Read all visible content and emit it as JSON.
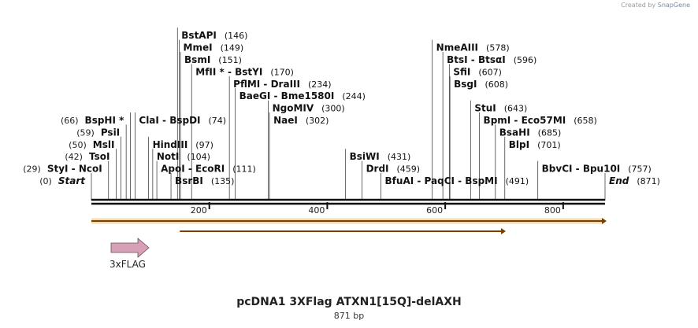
{
  "watermark": {
    "prefix": "Created by",
    "brand": "SnapGene"
  },
  "plasmid": {
    "name": "pcDNA1 3XFlag ATXN1[15Q]-delAXH",
    "length_label": "871 bp"
  },
  "sequence": {
    "length": 871
  },
  "ticks": [
    {
      "pos": 200,
      "label": "200"
    },
    {
      "pos": 400,
      "label": "400"
    },
    {
      "pos": 600,
      "label": "600"
    },
    {
      "pos": 800,
      "label": "800"
    }
  ],
  "features": [
    {
      "name": "3xFLAG",
      "type": "cds",
      "start": 33,
      "end": 98,
      "color": "#d7a0b6"
    }
  ],
  "orfs": [
    {
      "start": 0,
      "end": 871,
      "color": "#d89a20"
    },
    {
      "start": 150,
      "end": 700,
      "color": "#d89a20"
    }
  ],
  "sites": [
    {
      "name": "Start",
      "num": "(0)",
      "pos": 0,
      "italic": true,
      "side": "left",
      "row": 0
    },
    {
      "name": "StyI - NcoI",
      "num": "(29)",
      "pos": 29,
      "side": "left",
      "row": 1
    },
    {
      "name": "TsoI",
      "num": "(42)",
      "pos": 42,
      "side": "left",
      "row": 2
    },
    {
      "name": "MslI",
      "num": "(50)",
      "pos": 50,
      "side": "left",
      "row": 3
    },
    {
      "name": "PsiI",
      "num": "(59)",
      "pos": 59,
      "side": "left",
      "row": 4
    },
    {
      "name": "BspHI *",
      "num": "(66)",
      "pos": 66,
      "side": "left",
      "row": 5
    },
    {
      "name": "BsrBI",
      "num": "(135)",
      "pos": 135,
      "side": "right",
      "row": 0
    },
    {
      "name": "ApoI - EcoRI",
      "num": "(111)",
      "pos": 111,
      "side": "right",
      "row": 1
    },
    {
      "name": "NotI",
      "num": "(104)",
      "pos": 104,
      "side": "right",
      "row": 2
    },
    {
      "name": "HindIII",
      "num": "(97)",
      "pos": 97,
      "side": "right",
      "row": 3
    },
    {
      "name": "ClaI - BspDI",
      "num": "(74)",
      "pos": 74,
      "side": "right",
      "row": 5
    },
    {
      "name": "MfII * - BstYI",
      "num": "(170)",
      "pos": 170,
      "side": "right",
      "row": 9
    },
    {
      "name": "BsmI",
      "num": "(151)",
      "pos": 151,
      "side": "right",
      "row": 10
    },
    {
      "name": "MmeI",
      "num": "(149)",
      "pos": 149,
      "side": "right",
      "row": 11
    },
    {
      "name": "BstAPI",
      "num": "(146)",
      "pos": 146,
      "side": "right",
      "row": 12
    },
    {
      "name": "BaeGI - Bme1580I",
      "num": "(244)",
      "pos": 244,
      "side": "right",
      "row": 7
    },
    {
      "name": "PflMI - DraIII",
      "num": "(234)",
      "pos": 234,
      "side": "right",
      "row": 8
    },
    {
      "name": "NaeI",
      "num": "(302)",
      "pos": 302,
      "side": "right",
      "row": 5
    },
    {
      "name": "NgoMIV",
      "num": "(300)",
      "pos": 300,
      "side": "right",
      "row": 6
    },
    {
      "name": "BsiWI",
      "num": "(431)",
      "pos": 431,
      "side": "right",
      "row": 2
    },
    {
      "name": "DrdI",
      "num": "(459)",
      "pos": 459,
      "side": "right",
      "row": 1
    },
    {
      "name": "BfuAI - PaqCI - BspMI",
      "num": "(491)",
      "pos": 491,
      "side": "right",
      "row": 0
    },
    {
      "name": "BsgI",
      "num": "(608)",
      "pos": 608,
      "side": "right",
      "row": 8
    },
    {
      "name": "SfiI",
      "num": "(607)",
      "pos": 607,
      "side": "right",
      "row": 9
    },
    {
      "name": "BtsI - BtsαI",
      "num": "(596)",
      "pos": 596,
      "side": "right",
      "row": 10
    },
    {
      "name": "NmeAIII",
      "num": "(578)",
      "pos": 578,
      "side": "right",
      "row": 11
    },
    {
      "name": "StuI",
      "num": "(643)",
      "pos": 643,
      "side": "right",
      "row": 6
    },
    {
      "name": "BpmI - Eco57MI",
      "num": "(658)",
      "pos": 658,
      "side": "right",
      "row": 5
    },
    {
      "name": "BsaHI",
      "num": "(685)",
      "pos": 685,
      "side": "right",
      "row": 4
    },
    {
      "name": "BlpI",
      "num": "(701)",
      "pos": 701,
      "side": "right",
      "row": 3
    },
    {
      "name": "BbvCI - Bpu10I",
      "num": "(757)",
      "pos": 757,
      "side": "right",
      "row": 1
    },
    {
      "name": "End",
      "num": "(871)",
      "pos": 871,
      "italic": true,
      "side": "right",
      "row": 0
    }
  ]
}
